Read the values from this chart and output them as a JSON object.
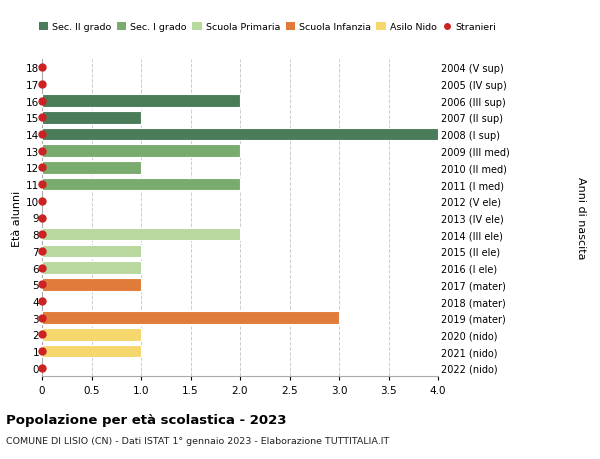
{
  "ages": [
    18,
    17,
    16,
    15,
    14,
    13,
    12,
    11,
    10,
    9,
    8,
    7,
    6,
    5,
    4,
    3,
    2,
    1,
    0
  ],
  "right_labels": [
    "2004 (V sup)",
    "2005 (IV sup)",
    "2006 (III sup)",
    "2007 (II sup)",
    "2008 (I sup)",
    "2009 (III med)",
    "2010 (II med)",
    "2011 (I med)",
    "2012 (V ele)",
    "2013 (IV ele)",
    "2014 (III ele)",
    "2015 (II ele)",
    "2016 (I ele)",
    "2017 (mater)",
    "2018 (mater)",
    "2019 (mater)",
    "2020 (nido)",
    "2021 (nido)",
    "2022 (nido)"
  ],
  "bar_values": [
    0,
    0,
    2,
    1,
    4,
    2,
    1,
    2,
    0,
    0,
    2,
    1,
    1,
    1,
    0,
    3,
    1,
    1,
    0
  ],
  "bar_colors": [
    "#4a7c59",
    "#4a7c59",
    "#4a7c59",
    "#4a7c59",
    "#4a7c59",
    "#7aab6e",
    "#7aab6e",
    "#7aab6e",
    "#b8d89e",
    "#b8d89e",
    "#b8d89e",
    "#b8d89e",
    "#b8d89e",
    "#e07b39",
    "#e07b39",
    "#e07b39",
    "#f5d76e",
    "#f5d76e",
    "#f5d76e"
  ],
  "stranieri_dots": [
    18,
    17,
    16,
    15,
    14,
    13,
    12,
    11,
    10,
    9,
    8,
    7,
    6,
    5,
    4,
    3,
    2,
    1,
    0
  ],
  "legend_labels": [
    "Sec. II grado",
    "Sec. I grado",
    "Scuola Primaria",
    "Scuola Infanzia",
    "Asilo Nido",
    "Stranieri"
  ],
  "legend_colors": [
    "#4a7c59",
    "#7aab6e",
    "#b8d89e",
    "#e07b39",
    "#f5d76e",
    "#cc2222"
  ],
  "title": "Popolazione per età scolastica - 2023",
  "subtitle": "COMUNE DI LISIO (CN) - Dati ISTAT 1° gennaio 2023 - Elaborazione TUTTITALIA.IT",
  "ylabel_left": "Età alunni",
  "ylabel_right": "Anni di nascita",
  "xlim": [
    0,
    4.0
  ],
  "bg_color": "#ffffff",
  "grid_color": "#cccccc",
  "bar_height": 0.75,
  "dot_color": "#cc2222",
  "dot_size": 25
}
